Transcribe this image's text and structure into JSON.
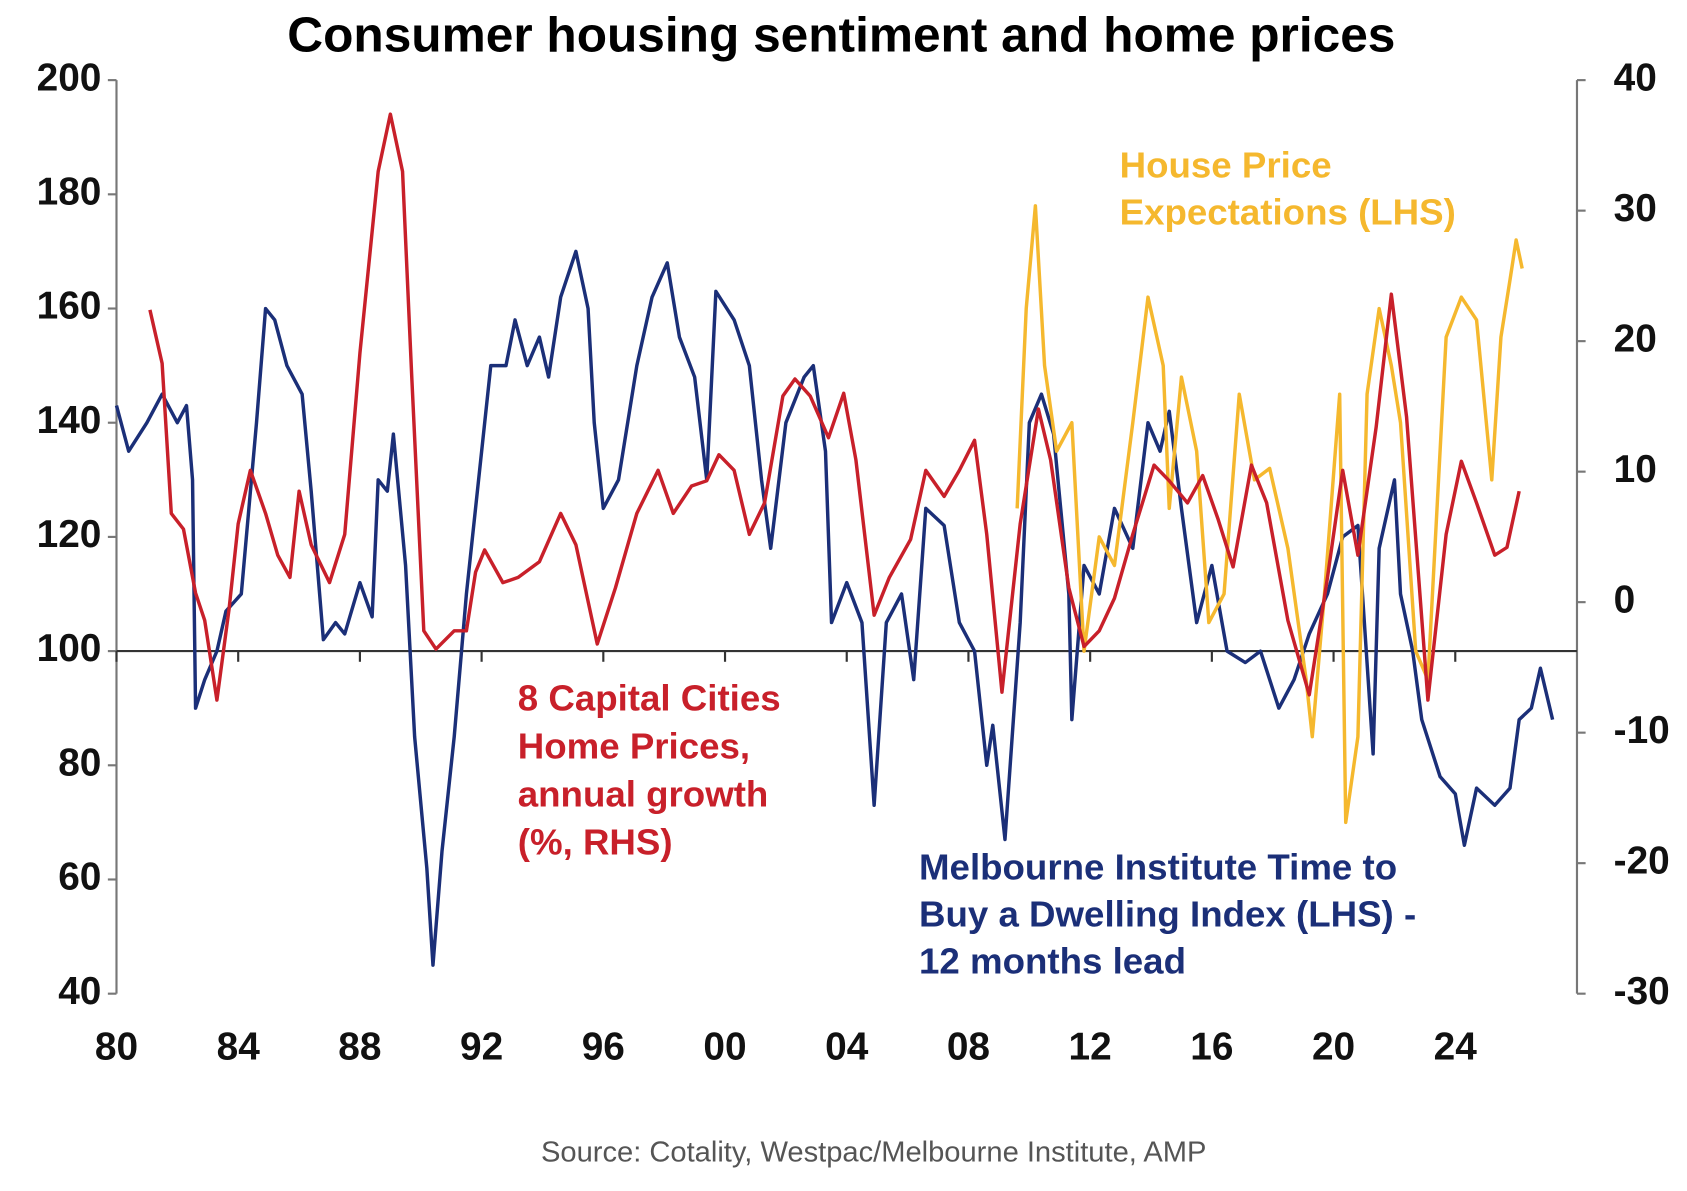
{
  "chart_data": {
    "type": "line",
    "title": "Consumer housing sentiment and home prices",
    "source": "Source: Cotality, Westpac/Melbourne Institute, AMP",
    "xlim": [
      1980,
      2028
    ],
    "xticks": [
      {
        "value": 1980,
        "label": "80"
      },
      {
        "value": 1984,
        "label": "84"
      },
      {
        "value": 1988,
        "label": "88"
      },
      {
        "value": 1992,
        "label": "92"
      },
      {
        "value": 1996,
        "label": "96"
      },
      {
        "value": 2000,
        "label": "00"
      },
      {
        "value": 2004,
        "label": "04"
      },
      {
        "value": 2008,
        "label": "08"
      },
      {
        "value": 2012,
        "label": "12"
      },
      {
        "value": 2016,
        "label": "16"
      },
      {
        "value": 2020,
        "label": "20"
      },
      {
        "value": 2024,
        "label": "24"
      }
    ],
    "ylim": [
      40,
      200
    ],
    "yticks": [
      40,
      60,
      80,
      100,
      120,
      140,
      160,
      180,
      200
    ],
    "y2lim": [
      -30,
      40
    ],
    "y2ticks": [
      -30,
      -20,
      -10,
      0,
      10,
      20,
      30,
      40
    ],
    "x_axis_crosses": 100,
    "series": [
      {
        "label_lines": [
          "Melbourne Institute Time to",
          "Buy a Dwelling Index (LHS) -",
          "12 months lead"
        ],
        "color": "#1b2f78",
        "x": [
          1980,
          1980.4,
          1981,
          1981.5,
          1982,
          1982.3,
          1982.5,
          1982.6,
          1982.9,
          1983.3,
          1983.6,
          1984.1,
          1984.6,
          1984.9,
          1985.2,
          1985.6,
          1986.1,
          1986.4,
          1986.8,
          1987.2,
          1987.5,
          1988,
          1988.4,
          1988.6,
          1988.9,
          1989.1,
          1989.5,
          1989.8,
          1990.2,
          1990.4,
          1990.7,
          1991.1,
          1991.5,
          1991.9,
          1992.3,
          1992.8,
          1993.1,
          1993.5,
          1993.9,
          1994.2,
          1994.6,
          1995.1,
          1995.5,
          1995.7,
          1996,
          1996.5,
          1997.1,
          1997.6,
          1998.1,
          1998.5,
          1999,
          1999.4,
          1999.7,
          2000.3,
          2000.8,
          2001.2,
          2001.5,
          2002,
          2002.6,
          2002.9,
          2003.3,
          2003.5,
          2004,
          2004.5,
          2004.9,
          2005.3,
          2005.8,
          2006.2,
          2006.6,
          2007.2,
          2007.7,
          2008.2,
          2008.6,
          2008.8,
          2009.2,
          2009.7,
          2010,
          2010.4,
          2010.8,
          2011.3,
          2011.4,
          2011.8,
          2012.3,
          2012.8,
          2013.4,
          2013.9,
          2014.3,
          2014.6,
          2015,
          2015.5,
          2016,
          2016.5,
          2017.1,
          2017.6,
          2018.2,
          2018.7,
          2019.2,
          2019.8,
          2020.3,
          2020.8,
          2021.3,
          2021.5,
          2022,
          2022.2,
          2022.6,
          2022.9,
          2023.5,
          2024,
          2024.3,
          2024.7,
          2025.3,
          2025.8,
          2026.1,
          2026.5,
          2026.8,
          2027.2
        ],
        "values": [
          143,
          135,
          140,
          145,
          140,
          143,
          130,
          90,
          95,
          100,
          107,
          110,
          140,
          160,
          158,
          150,
          145,
          128,
          102,
          105,
          103,
          112,
          106,
          130,
          128,
          138,
          115,
          85,
          62,
          45,
          65,
          85,
          110,
          130,
          150,
          150,
          158,
          150,
          155,
          148,
          162,
          170,
          160,
          140,
          125,
          130,
          150,
          162,
          168,
          155,
          148,
          130,
          163,
          158,
          150,
          130,
          118,
          140,
          148,
          150,
          135,
          105,
          112,
          105,
          73,
          105,
          110,
          95,
          125,
          122,
          105,
          100,
          80,
          87,
          67,
          105,
          140,
          145,
          138,
          110,
          88,
          115,
          110,
          125,
          118,
          140,
          135,
          142,
          125,
          105,
          115,
          100,
          98,
          100,
          90,
          95,
          103,
          110,
          120,
          122,
          82,
          118,
          130,
          110,
          100,
          88,
          78,
          75,
          66,
          76,
          73,
          76,
          88,
          90,
          97,
          88
        ]
      },
      {
        "label_lines": [
          "8 Capital Cities",
          "Home Prices,",
          "annual growth",
          "(%, RHS)"
        ],
        "color": "#c8202a",
        "axis": "y2",
        "x": [
          1981.1,
          1981.5,
          1981.8,
          1982.2,
          1982.6,
          1982.9,
          1983.3,
          1983.7,
          1984,
          1984.4,
          1984.9,
          1985.3,
          1985.7,
          1986,
          1986.4,
          1987,
          1987.5,
          1988,
          1988.6,
          1989,
          1989.4,
          1989.7,
          1990.1,
          1990.5,
          1991.1,
          1991.5,
          1991.8,
          1992.1,
          1992.7,
          1993.2,
          1993.9,
          1994.6,
          1995.1,
          1995.8,
          1996.4,
          1997.1,
          1997.8,
          1998.3,
          1998.9,
          1999.4,
          1999.8,
          2000.3,
          2000.8,
          2001.3,
          2001.9,
          2002.3,
          2002.8,
          2003.4,
          2003.9,
          2004.3,
          2004.9,
          2005.4,
          2006.1,
          2006.6,
          2007.2,
          2007.7,
          2008.2,
          2008.6,
          2009.1,
          2009.7,
          2010.3,
          2010.7,
          2011.3,
          2011.8,
          2012.3,
          2012.8,
          2013.4,
          2014.1,
          2014.6,
          2015.2,
          2015.7,
          2016.2,
          2016.7,
          2017.3,
          2017.8,
          2018.5,
          2019.2,
          2019.8,
          2020.3,
          2020.8,
          2021.4,
          2021.9,
          2022.4,
          2023.1,
          2023.7,
          2024.2,
          2024.7,
          2025.3,
          2025.7,
          2026.1
        ],
        "values": [
          22.4,
          18.3,
          6.8,
          5.6,
          0.7,
          -1.4,
          -7.5,
          -0.5,
          6.0,
          10.1,
          6.8,
          3.6,
          1.9,
          8.5,
          4.4,
          1.5,
          5.2,
          19.1,
          33.0,
          37.4,
          33.0,
          17.5,
          -2.2,
          -3.6,
          -2.2,
          -2.2,
          2.3,
          4.0,
          1.5,
          1.9,
          3.1,
          6.8,
          4.4,
          -3.2,
          1.1,
          6.8,
          10.1,
          6.8,
          8.9,
          9.3,
          11.3,
          10.1,
          5.2,
          7.6,
          15.8,
          17.1,
          15.8,
          12.6,
          16.0,
          10.9,
          -1.0,
          1.9,
          4.8,
          10.1,
          8.1,
          10.1,
          12.4,
          5.2,
          -6.9,
          6.0,
          14.8,
          10.9,
          1.1,
          -3.4,
          -2.2,
          0.3,
          5.2,
          10.5,
          9.3,
          7.6,
          9.7,
          6.4,
          2.7,
          10.5,
          7.6,
          -1.4,
          -7.1,
          1.9,
          10.1,
          3.6,
          13.4,
          23.6,
          14.2,
          -7.5,
          5.2,
          10.8,
          7.6,
          3.6,
          4.2,
          8.5
        ]
      },
      {
        "label_lines": [
          "House Price",
          "Expectations (LHS)"
        ],
        "color": "#f5b82e",
        "x": [
          2009.6,
          2009.9,
          2010.2,
          2010.5,
          2010.9,
          2011.4,
          2011.8,
          2012.3,
          2012.8,
          2013.4,
          2013.9,
          2014.4,
          2014.6,
          2015,
          2015.5,
          2015.9,
          2016.4,
          2016.9,
          2017.4,
          2017.9,
          2018.5,
          2019.1,
          2019.3,
          2019.7,
          2020.2,
          2020.4,
          2020.8,
          2021.1,
          2021.5,
          2021.9,
          2022.2,
          2022.7,
          2023.1,
          2023.7,
          2024.2,
          2024.7,
          2025.2,
          2025.5,
          2025.8,
          2026,
          2026.2
        ],
        "values": [
          125,
          160,
          178,
          150,
          135,
          140,
          100,
          120,
          115,
          140,
          162,
          150,
          125,
          148,
          135,
          105,
          110,
          145,
          130,
          132,
          118,
          95,
          85,
          110,
          145,
          70,
          85,
          145,
          160,
          150,
          140,
          100,
          95,
          155,
          162,
          158,
          130,
          155,
          165,
          172,
          167
        ]
      }
    ]
  }
}
